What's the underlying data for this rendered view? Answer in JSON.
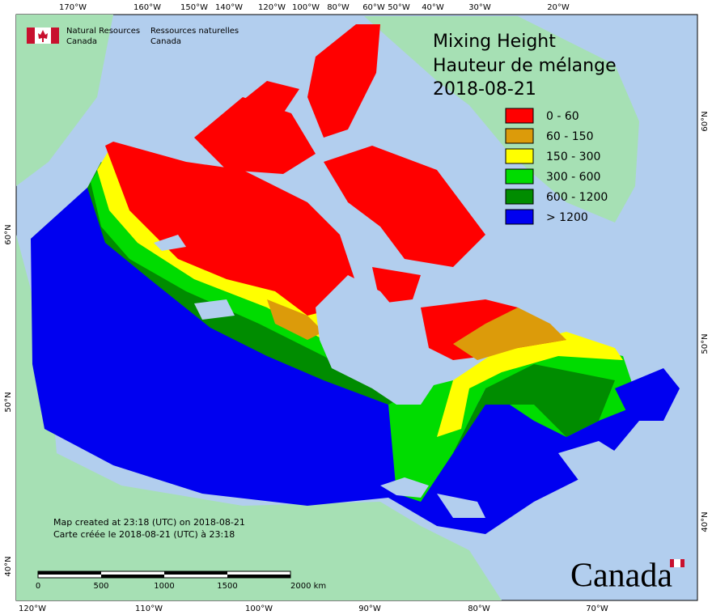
{
  "header": {
    "agency_en": [
      "Natural Resources",
      "Canada"
    ],
    "agency_fr": [
      "Ressources naturelles",
      "Canada"
    ]
  },
  "title": [
    "Mixing Height",
    "Hauteur de mélange",
    "2018-08-21"
  ],
  "legend": [
    {
      "label": "0 - 60",
      "color": "#ff0000"
    },
    {
      "label": "60 - 150",
      "color": "#dc9b0a"
    },
    {
      "label": "150 - 300",
      "color": "#ffff00"
    },
    {
      "label": "300 - 600",
      "color": "#00dc00"
    },
    {
      "label": "600 - 1200",
      "color": "#008c00"
    },
    {
      "label": "> 1200",
      "color": "#0000f0"
    }
  ],
  "graticule": {
    "top": [
      "170°W",
      "160°W",
      "150°W",
      "140°W",
      "120°W",
      "100°W",
      "80°W",
      "60°W",
      "50°W",
      "40°W",
      "30°W",
      "20°W"
    ],
    "bottom": [
      "120°W",
      "110°W",
      "100°W",
      "90°W",
      "80°W",
      "70°W"
    ],
    "left": [
      "60°N",
      "50°N",
      "40°N"
    ],
    "right": [
      "60°N",
      "50°N",
      "40°N"
    ]
  },
  "footer": [
    "Map created at 23:18 (UTC) on 2018-08-21",
    "Carte créée le 2018-08-21 (UTC) à 23:18"
  ],
  "scale_bar": [
    "0",
    "500",
    "1000",
    "1500",
    "2000 km"
  ],
  "wordmark": "Canada"
}
